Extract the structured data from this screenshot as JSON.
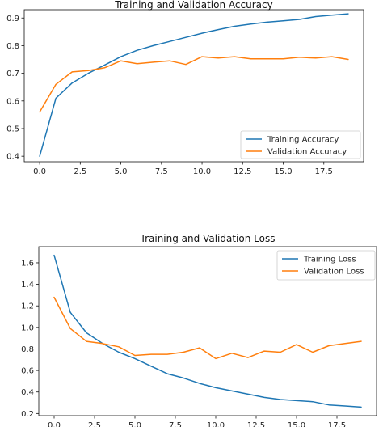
{
  "chart_data": [
    {
      "type": "line",
      "title": "Training and Validation Accuracy",
      "xlabel": "",
      "ylabel": "",
      "x": [
        0,
        1,
        2,
        3,
        4,
        5,
        6,
        7,
        8,
        9,
        10,
        11,
        12,
        13,
        14,
        15,
        16,
        17,
        18,
        19
      ],
      "xlim": [
        -0.95,
        19.95
      ],
      "ylim": [
        0.38,
        0.93
      ],
      "xticks": [
        0.0,
        2.5,
        5.0,
        7.5,
        10.0,
        12.5,
        15.0,
        17.5
      ],
      "xtick_labels": [
        "0.0",
        "2.5",
        "5.0",
        "7.5",
        "10.0",
        "12.5",
        "15.0",
        "17.5"
      ],
      "yticks": [
        0.4,
        0.5,
        0.6,
        0.7,
        0.8,
        0.9
      ],
      "ytick_labels": [
        "0.4",
        "0.5",
        "0.6",
        "0.7",
        "0.8",
        "0.9"
      ],
      "legend": "lower-right",
      "grid": false,
      "series": [
        {
          "name": "Training Accuracy",
          "color": "#1f77b4",
          "values": [
            0.4,
            0.61,
            0.665,
            0.7,
            0.73,
            0.76,
            0.783,
            0.8,
            0.815,
            0.83,
            0.845,
            0.858,
            0.87,
            0.878,
            0.885,
            0.89,
            0.895,
            0.905,
            0.91,
            0.915
          ]
        },
        {
          "name": "Validation Accuracy",
          "color": "#ff7f0e",
          "values": [
            0.56,
            0.66,
            0.705,
            0.71,
            0.72,
            0.745,
            0.735,
            0.74,
            0.745,
            0.732,
            0.76,
            0.755,
            0.76,
            0.752,
            0.752,
            0.752,
            0.758,
            0.755,
            0.76,
            0.75
          ]
        }
      ]
    },
    {
      "type": "line",
      "title": "Training and Validation Loss",
      "xlabel": "",
      "ylabel": "",
      "x": [
        0,
        1,
        2,
        3,
        4,
        5,
        6,
        7,
        8,
        9,
        10,
        11,
        12,
        13,
        14,
        15,
        16,
        17,
        18,
        19
      ],
      "xlim": [
        -0.95,
        19.95
      ],
      "ylim": [
        0.18,
        1.75
      ],
      "xticks": [
        0.0,
        2.5,
        5.0,
        7.5,
        10.0,
        12.5,
        15.0,
        17.5
      ],
      "xtick_labels": [
        "0.0",
        "2.5",
        "5.0",
        "7.5",
        "10.0",
        "12.5",
        "15.0",
        "17.5"
      ],
      "yticks": [
        0.2,
        0.4,
        0.6,
        0.8,
        1.0,
        1.2,
        1.4,
        1.6
      ],
      "ytick_labels": [
        "0.2",
        "0.4",
        "0.6",
        "0.8",
        "1.0",
        "1.2",
        "1.4",
        "1.6"
      ],
      "legend": "top-right",
      "grid": false,
      "series": [
        {
          "name": "Training Loss",
          "color": "#1f77b4",
          "values": [
            1.67,
            1.14,
            0.95,
            0.85,
            0.77,
            0.71,
            0.64,
            0.57,
            0.53,
            0.48,
            0.44,
            0.41,
            0.38,
            0.35,
            0.33,
            0.32,
            0.31,
            0.28,
            0.27,
            0.26
          ]
        },
        {
          "name": "Validation Loss",
          "color": "#ff7f0e",
          "values": [
            1.28,
            0.99,
            0.87,
            0.85,
            0.82,
            0.74,
            0.75,
            0.75,
            0.77,
            0.81,
            0.71,
            0.76,
            0.72,
            0.78,
            0.77,
            0.84,
            0.77,
            0.83,
            0.85,
            0.87
          ]
        }
      ]
    }
  ]
}
